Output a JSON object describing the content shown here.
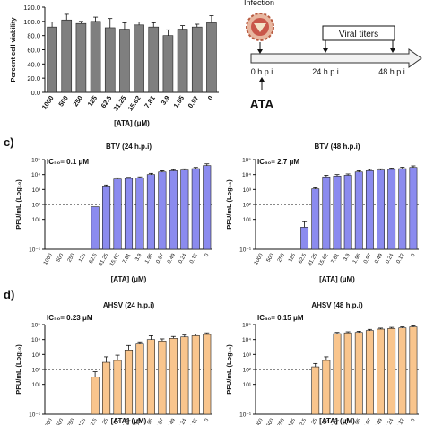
{
  "panel_labels": {
    "c": "c)",
    "d": "d)"
  },
  "timeline": {
    "infection_label": "Infection",
    "viral_titers_label": "Viral titers",
    "times": [
      "0 h.p.i",
      "24 h.p.i",
      "48 h.p.i"
    ],
    "drug_label": "ATA"
  },
  "chart_data": [
    {
      "id": "viability",
      "type": "bar",
      "title": "",
      "xlabel": "[ATA] (μM)",
      "ylabel": "Percent cell viability",
      "ylim": [
        0,
        120
      ],
      "yticks": [
        "0.0",
        "20.0",
        "40.0",
        "60.0",
        "80.0",
        "100.0",
        "120.0"
      ],
      "categories": [
        "1000",
        "500",
        "250",
        "125",
        "62.5",
        "31.25",
        "15.62",
        "7.81",
        "3.9",
        "1.95",
        "0.97",
        "0"
      ],
      "values": [
        92,
        102,
        97,
        100,
        91,
        89,
        95,
        92,
        80,
        89,
        92,
        98
      ],
      "errors": [
        7,
        8,
        3,
        6,
        13,
        9,
        4,
        6,
        8,
        5,
        4,
        10
      ],
      "color": "#7f7f7f"
    },
    {
      "id": "btv24",
      "type": "bar",
      "title": "BTV (24 h.p.i)",
      "ic50": "IC₅₀= 0.1 μM",
      "xlabel": "[ATA] (μM)",
      "ylabel": "PFU/mL (Log₁₀)",
      "log_scale": true,
      "ylim_exp": [
        -1,
        5
      ],
      "yticks": [
        "10⁻¹",
        "10¹",
        "10²",
        "10³",
        "10⁴",
        "10⁵"
      ],
      "detection_limit": 100,
      "categories": [
        "1000",
        "500",
        "250",
        "125",
        "62.5",
        "31.25",
        "15.62",
        "7.81",
        "3.9",
        "1.95",
        "0.97",
        "0.49",
        "0.24",
        "0.12",
        "0"
      ],
      "values": [
        null,
        null,
        null,
        null,
        70,
        1500,
        5000,
        5500,
        6000,
        10000,
        15000,
        18000,
        20000,
        25000,
        40000
      ],
      "errors": [
        0,
        0,
        0,
        0,
        0,
        500,
        1000,
        1000,
        1000,
        2000,
        3000,
        3000,
        4000,
        5000,
        12000
      ],
      "color": "#8b8bef"
    },
    {
      "id": "btv48",
      "type": "bar",
      "title": "BTV (48 h.p.i)",
      "ic50": "IC₅₀= 2.7 μM",
      "xlabel": "[ATA] (μM)",
      "ylabel": "PFU/mL (Log₁₀)",
      "log_scale": true,
      "ylim_exp": [
        -1,
        5
      ],
      "yticks": [
        "10⁻¹",
        "10¹",
        "10²",
        "10³",
        "10⁴",
        "10⁵"
      ],
      "detection_limit": 100,
      "categories": [
        "1000",
        "500",
        "250",
        "125",
        "62.5",
        "31.25",
        "15.62",
        "7.81",
        "3.9",
        "1.95",
        "0.97",
        "0.49",
        "0.24",
        "0.12",
        "0"
      ],
      "values": [
        null,
        null,
        null,
        null,
        3,
        1100,
        7000,
        8000,
        9000,
        15000,
        18000,
        20000,
        22000,
        25000,
        30000
      ],
      "errors": [
        0,
        0,
        0,
        0,
        4,
        200,
        2000,
        2000,
        2000,
        3000,
        4000,
        4000,
        5000,
        6000,
        8000
      ],
      "color": "#8b8bef"
    },
    {
      "id": "ahsv24",
      "type": "bar",
      "title": "AHSV (24 h.p.i)",
      "ic50": "IC₅₀= 0.23 μM",
      "xlabel": "[ATA] (μM)",
      "ylabel": "PFU/mL (Log₁₀)",
      "log_scale": true,
      "ylim_exp": [
        -1,
        5
      ],
      "yticks": [
        "10⁻¹",
        "10¹",
        "10²",
        "10³",
        "10⁴",
        "10⁵"
      ],
      "detection_limit": 100,
      "categories": [
        "1000",
        "500",
        "250",
        "125",
        "62.5",
        "31.25",
        "15.62",
        "7.81",
        "3.9",
        "1.95",
        "0.97",
        "0.49",
        "0.24",
        "0.12",
        "0"
      ],
      "values": [
        null,
        null,
        null,
        null,
        30,
        300,
        400,
        2000,
        5000,
        10000,
        8000,
        12000,
        15000,
        18000,
        22000
      ],
      "errors": [
        0,
        0,
        0,
        0,
        40,
        400,
        500,
        2000,
        2000,
        8000,
        3000,
        4000,
        5000,
        5000,
        6000
      ],
      "color": "#f9c58d"
    },
    {
      "id": "ahsv48",
      "type": "bar",
      "title": "AHSV (48 h.p.i)",
      "ic50": "IC₅₀= 0.15 μM",
      "xlabel": "[ATA] (μM)",
      "ylabel": "PFU/mL (Log₁₀)",
      "log_scale": true,
      "ylim_exp": [
        -1,
        5
      ],
      "yticks": [
        "10⁻¹",
        "10¹",
        "10²",
        "10³",
        "10⁴",
        "10⁵"
      ],
      "detection_limit": 100,
      "categories": [
        "1000",
        "500",
        "250",
        "125",
        "62.5",
        "31.25",
        "15.62",
        "7.81",
        "3.9",
        "1.95",
        "0.97",
        "0.49",
        "0.24",
        "0.12",
        "0"
      ],
      "values": [
        null,
        null,
        null,
        null,
        null,
        150,
        400,
        25000,
        28000,
        30000,
        40000,
        50000,
        55000,
        60000,
        70000
      ],
      "errors": [
        0,
        0,
        0,
        0,
        0,
        100,
        300,
        5000,
        5000,
        6000,
        8000,
        8000,
        10000,
        10000,
        12000
      ],
      "color": "#f9c58d"
    }
  ]
}
